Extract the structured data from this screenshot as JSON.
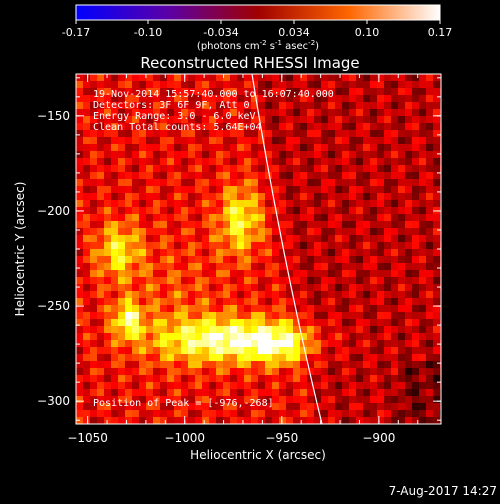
{
  "colorbar": {
    "ticks": [
      "-0.17",
      "-0.10",
      "-0.034",
      "0.034",
      "0.10",
      "0.17"
    ],
    "unit_label": "(photons cm",
    "unit_sup1": "-2",
    "unit_mid": " s",
    "unit_sup2": "-1",
    "unit_mid2": " asec",
    "unit_sup3": "-2",
    "unit_end": ")",
    "range": [
      -0.17,
      0.17
    ]
  },
  "chart_data": {
    "type": "heatmap",
    "title": "Reconstructed RHESSI Image",
    "xlabel": "Heliocentric X (arcsec)",
    "ylabel": "Heliocentric Y (arcsec)",
    "xlim": [
      -1056,
      -868
    ],
    "ylim": [
      -312,
      -128
    ],
    "x_ticks": [
      -1050,
      -1000,
      -950,
      -900
    ],
    "x_tick_labels": [
      "−1050",
      "−1000",
      "−950",
      "−900"
    ],
    "y_ticks": [
      -150,
      -200,
      -250,
      -300
    ],
    "y_tick_labels": [
      "−150",
      "−200",
      "−250",
      "−300"
    ],
    "annotations": [
      "19-Nov-2014 15:57:40.000 to 16:07:40.000",
      "Detectors: 3F 6F 9F, Att 0",
      "Energy Range: 3.0 - 6.0 keV",
      "Clean     Total counts: 5.64E+04"
    ],
    "peak_label": "Position of Peak = [-976,-268]",
    "peak": [
      -976,
      -268
    ],
    "limb_color": "#ffffff",
    "colormap": "hot"
  },
  "footer": {
    "date": "7-Aug-2017 14:27"
  }
}
